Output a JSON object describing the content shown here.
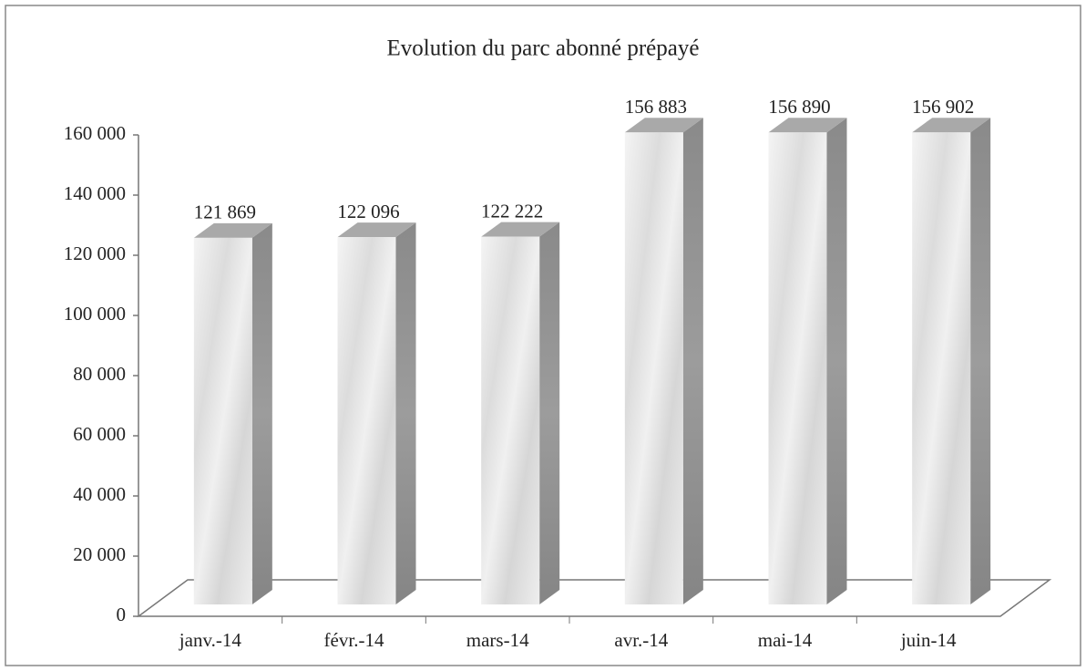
{
  "chart_data": {
    "type": "bar3d",
    "title": "Evolution du parc abonné prépayé",
    "categories": [
      "janv.-14",
      "févr.-14",
      "mars-14",
      "avr.-14",
      "mai-14",
      "juin-14"
    ],
    "values": [
      121869,
      122096,
      122222,
      156883,
      156890,
      156902
    ],
    "value_labels": [
      "121 869",
      "122 096",
      "122 222",
      "156 883",
      "156 890",
      "156 902"
    ],
    "ylim": [
      0,
      160000
    ],
    "yticks": [
      0,
      {
        "value": 20000,
        "label": "20 000"
      },
      {
        "value": 40000,
        "label": "40 000"
      },
      {
        "value": 60000,
        "label": "60 000"
      },
      {
        "value": 80000,
        "label": "80 000"
      },
      {
        "value": 100000,
        "label": "100 000"
      },
      {
        "value": 120000,
        "label": "120 000"
      },
      {
        "value": 140000,
        "label": "140 000"
      },
      {
        "value": 160000,
        "label": "160 000"
      }
    ],
    "color": "#e4e4e4"
  }
}
